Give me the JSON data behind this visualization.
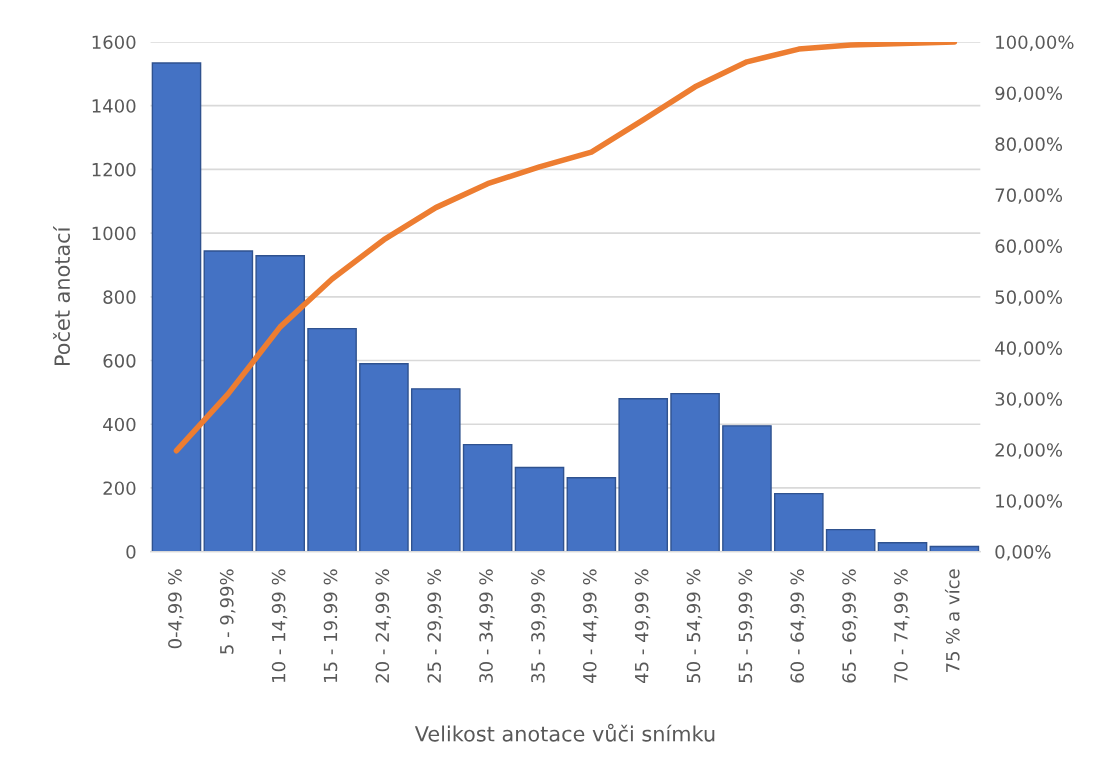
{
  "chart_data": {
    "type": "bar",
    "xlabel": "Velikost anotace vůči snímku",
    "ylabel": "Počet anotací",
    "categories": [
      "0-4,99 %",
      "5 - 9,99%",
      "10 - 14,99 %",
      "15 - 19.99 %",
      "20 - 24,99 %",
      "25 - 29,99 %",
      "30 - 34,99 %",
      "35 - 39,99 %",
      "40 - 44,99 %",
      "45 - 49,99 %",
      "50 - 54,99 %",
      "55 - 59,99 %",
      "60 - 64,99 %",
      "65 - 69,99 %",
      "70 - 74,99 %",
      "75 % a více"
    ],
    "series": [
      {
        "color": "#4472c4",
        "values": [
          1534,
          944,
          929,
          700,
          590,
          511,
          336,
          264,
          232,
          480,
          496,
          395,
          182,
          69,
          28,
          16
        ]
      },
      {
        "type": "line",
        "axis": "y2",
        "color": "#ed7d31",
        "values": [
          19.8,
          31,
          44.1,
          53.5,
          61.2,
          67.5,
          72.2,
          75.5,
          78.4,
          84.7,
          91.2,
          96.1,
          98.6,
          99.4,
          99.7,
          100
        ]
      }
    ],
    "ylim": [
      0,
      1600
    ],
    "yticks": [
      0,
      200,
      400,
      600,
      800,
      1000,
      1200,
      1400,
      1600
    ],
    "y2lim": [
      0,
      100
    ],
    "y2ticks": [
      {
        "value": 0,
        "label": "0,00%"
      },
      {
        "value": 10,
        "label": "10,00%"
      },
      {
        "value": 20,
        "label": "20,00%"
      },
      {
        "value": 30,
        "label": "30,00%"
      },
      {
        "value": 40,
        "label": "40,00%"
      },
      {
        "value": 50,
        "label": "50,00%"
      },
      {
        "value": 60,
        "label": "60,00%"
      },
      {
        "value": 70,
        "label": "70,00%"
      },
      {
        "value": 80,
        "label": "80,00%"
      },
      {
        "value": 90,
        "label": "90,00%"
      },
      {
        "value": 100,
        "label": "100,00%"
      }
    ],
    "grid": "y"
  }
}
